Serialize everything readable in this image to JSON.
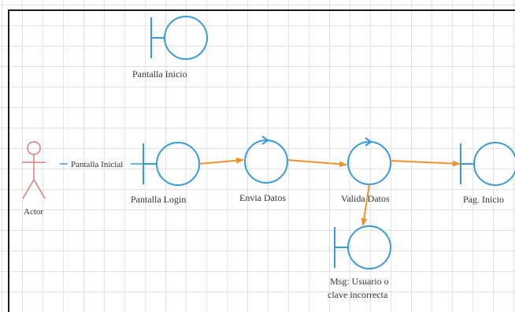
{
  "diagram": {
    "actor": {
      "label": "Actor",
      "color": "#e07a7a"
    },
    "association_label": "Pantalla Inicial",
    "boundaries": [
      {
        "id": "pantalla-inicio",
        "label": "Pantalla Inicio"
      },
      {
        "id": "pantalla-login",
        "label": "Pantalla Login"
      },
      {
        "id": "pag-inicio",
        "label": "Pag. Inicio"
      },
      {
        "id": "msg-error",
        "label_line1": "Msg: Usuario o",
        "label_line2": "clave incorrecta"
      }
    ],
    "controls": [
      {
        "id": "envia-datos",
        "label": "Envia Datos"
      },
      {
        "id": "valida-datos",
        "label": "Valida Datos"
      }
    ],
    "colors": {
      "element": "#3a9ad9",
      "arrow": "#f0922e",
      "frame": "#1a1a1a"
    }
  }
}
